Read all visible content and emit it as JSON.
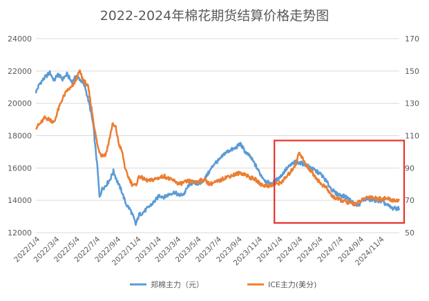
{
  "chart_data": {
    "type": "line",
    "title": "2022-2024年棉花期货结算价格走势图",
    "x_range": [
      "2022-01-04",
      "2024-12-31"
    ],
    "x_tick_labels": [
      "2022/1/4",
      "2022/3/4",
      "2022/5/4",
      "2022/7/4",
      "2022/9/4",
      "2022/11/4",
      "2023/1/4",
      "2023/3/4",
      "2023/5/4",
      "2023/7/4",
      "2023/9/4",
      "2023/11/4",
      "2024/1/4",
      "2024/3/4",
      "2024/5/4",
      "2024/7/4",
      "2024/9/4",
      "2024/11/4"
    ],
    "y_left": {
      "min": 12000,
      "max": 24000,
      "step": 2000,
      "ticks": [
        "12000",
        "14000",
        "16000",
        "18000",
        "20000",
        "22000",
        "24000"
      ]
    },
    "y_right": {
      "min": 50,
      "max": 170,
      "step": 20,
      "ticks": [
        "50",
        "70",
        "90",
        "110",
        "130",
        "150",
        "170"
      ]
    },
    "grid": true,
    "legend": "bottom",
    "series": [
      {
        "name": "郑棉主力（元）",
        "axis": "left",
        "color": "#5b9bd5",
        "points": [
          [
            "2022-01-04",
            20700
          ],
          [
            "2022-01-15",
            21200
          ],
          [
            "2022-01-31",
            21600
          ],
          [
            "2022-02-15",
            21900
          ],
          [
            "2022-02-28",
            21400
          ],
          [
            "2022-03-10",
            21800
          ],
          [
            "2022-03-25",
            21500
          ],
          [
            "2022-04-08",
            21800
          ],
          [
            "2022-04-22",
            21300
          ],
          [
            "2022-05-06",
            21700
          ],
          [
            "2022-05-20",
            21400
          ],
          [
            "2022-06-01",
            21000
          ],
          [
            "2022-06-15",
            19800
          ],
          [
            "2022-06-25",
            18700
          ],
          [
            "2022-07-01",
            17400
          ],
          [
            "2022-07-08",
            16000
          ],
          [
            "2022-07-14",
            14200
          ],
          [
            "2022-07-22",
            14700
          ],
          [
            "2022-08-01",
            14900
          ],
          [
            "2022-08-15",
            15300
          ],
          [
            "2022-08-25",
            15800
          ],
          [
            "2022-09-05",
            15200
          ],
          [
            "2022-09-20",
            14500
          ],
          [
            "2022-10-01",
            13800
          ],
          [
            "2022-10-15",
            13400
          ],
          [
            "2022-10-25",
            12900
          ],
          [
            "2022-10-31",
            12500
          ],
          [
            "2022-11-10",
            13100
          ],
          [
            "2022-11-25",
            13300
          ],
          [
            "2022-12-10",
            13600
          ],
          [
            "2022-12-25",
            13900
          ],
          [
            "2023-01-10",
            14300
          ],
          [
            "2023-01-25",
            14200
          ],
          [
            "2023-02-10",
            14400
          ],
          [
            "2023-02-25",
            14500
          ],
          [
            "2023-03-10",
            14300
          ],
          [
            "2023-03-25",
            14400
          ],
          [
            "2023-04-10",
            15000
          ],
          [
            "2023-04-25",
            15100
          ],
          [
            "2023-05-10",
            15000
          ],
          [
            "2023-05-25",
            15300
          ],
          [
            "2023-06-10",
            15800
          ],
          [
            "2023-06-25",
            16300
          ],
          [
            "2023-07-10",
            16500
          ],
          [
            "2023-07-25",
            16900
          ],
          [
            "2023-08-10",
            17100
          ],
          [
            "2023-08-25",
            17200
          ],
          [
            "2023-09-10",
            17500
          ],
          [
            "2023-09-25",
            17000
          ],
          [
            "2023-10-10",
            16700
          ],
          [
            "2023-10-25",
            16200
          ],
          [
            "2023-11-10",
            15600
          ],
          [
            "2023-11-25",
            15200
          ],
          [
            "2023-12-10",
            15000
          ],
          [
            "2023-12-25",
            15200
          ],
          [
            "2024-01-10",
            15500
          ],
          [
            "2024-01-25",
            15900
          ],
          [
            "2024-02-10",
            16200
          ],
          [
            "2024-02-25",
            16400
          ],
          [
            "2024-03-10",
            16300
          ],
          [
            "2024-03-25",
            16200
          ],
          [
            "2024-04-10",
            16000
          ],
          [
            "2024-04-25",
            15800
          ],
          [
            "2024-05-10",
            15600
          ],
          [
            "2024-05-25",
            15200
          ],
          [
            "2024-06-10",
            14700
          ],
          [
            "2024-06-25",
            14400
          ],
          [
            "2024-07-10",
            14300
          ],
          [
            "2024-07-25",
            14200
          ],
          [
            "2024-08-10",
            13900
          ],
          [
            "2024-08-20",
            13700
          ],
          [
            "2024-08-31",
            13700
          ],
          [
            "2024-09-10",
            14000
          ],
          [
            "2024-09-25",
            14100
          ],
          [
            "2024-10-10",
            14000
          ],
          [
            "2024-10-25",
            14000
          ],
          [
            "2024-11-10",
            13900
          ],
          [
            "2024-11-25",
            13700
          ],
          [
            "2024-12-10",
            13500
          ],
          [
            "2024-12-31",
            13500
          ]
        ]
      },
      {
        "name": "ICE主力(美分)",
        "axis": "right",
        "color": "#ed7d31",
        "points": [
          [
            "2022-01-04",
            115
          ],
          [
            "2022-01-15",
            117
          ],
          [
            "2022-01-31",
            121
          ],
          [
            "2022-02-15",
            120
          ],
          [
            "2022-02-28",
            118
          ],
          [
            "2022-03-10",
            125
          ],
          [
            "2022-03-25",
            133
          ],
          [
            "2022-04-08",
            138
          ],
          [
            "2022-04-22",
            140
          ],
          [
            "2022-05-06",
            145
          ],
          [
            "2022-05-15",
            150
          ],
          [
            "2022-05-25",
            145
          ],
          [
            "2022-06-10",
            140
          ],
          [
            "2022-06-20",
            127
          ],
          [
            "2022-07-01",
            112
          ],
          [
            "2022-07-10",
            102
          ],
          [
            "2022-07-20",
            98
          ],
          [
            "2022-08-01",
            98
          ],
          [
            "2022-08-10",
            105
          ],
          [
            "2022-08-22",
            117
          ],
          [
            "2022-09-01",
            115
          ],
          [
            "2022-09-10",
            105
          ],
          [
            "2022-09-20",
            100
          ],
          [
            "2022-10-01",
            88
          ],
          [
            "2022-10-10",
            84
          ],
          [
            "2022-10-20",
            80
          ],
          [
            "2022-10-31",
            79
          ],
          [
            "2022-11-10",
            85
          ],
          [
            "2022-11-25",
            83
          ],
          [
            "2022-12-10",
            82
          ],
          [
            "2022-12-25",
            83
          ],
          [
            "2023-01-10",
            84
          ],
          [
            "2023-01-25",
            85
          ],
          [
            "2023-02-10",
            83
          ],
          [
            "2023-02-25",
            82
          ],
          [
            "2023-03-10",
            80
          ],
          [
            "2023-03-25",
            81
          ],
          [
            "2023-04-10",
            82
          ],
          [
            "2023-04-25",
            81
          ],
          [
            "2023-05-10",
            82
          ],
          [
            "2023-05-25",
            83
          ],
          [
            "2023-06-10",
            80
          ],
          [
            "2023-06-25",
            81
          ],
          [
            "2023-07-10",
            82
          ],
          [
            "2023-07-25",
            84
          ],
          [
            "2023-08-10",
            85
          ],
          [
            "2023-08-25",
            86
          ],
          [
            "2023-09-10",
            87
          ],
          [
            "2023-09-25",
            86
          ],
          [
            "2023-10-10",
            84
          ],
          [
            "2023-10-25",
            83
          ],
          [
            "2023-11-10",
            80
          ],
          [
            "2023-11-25",
            79
          ],
          [
            "2023-12-10",
            79
          ],
          [
            "2023-12-25",
            80
          ],
          [
            "2024-01-10",
            81
          ],
          [
            "2024-01-25",
            84
          ],
          [
            "2024-02-10",
            88
          ],
          [
            "2024-02-25",
            93
          ],
          [
            "2024-03-05",
            100
          ],
          [
            "2024-03-15",
            96
          ],
          [
            "2024-03-25",
            92
          ],
          [
            "2024-04-10",
            88
          ],
          [
            "2024-04-25",
            84
          ],
          [
            "2024-05-10",
            80
          ],
          [
            "2024-05-25",
            78
          ],
          [
            "2024-06-10",
            73
          ],
          [
            "2024-06-25",
            71
          ],
          [
            "2024-07-10",
            70
          ],
          [
            "2024-07-25",
            69
          ],
          [
            "2024-08-10",
            68
          ],
          [
            "2024-08-25",
            68
          ],
          [
            "2024-09-10",
            70
          ],
          [
            "2024-09-25",
            72
          ],
          [
            "2024-10-10",
            72
          ],
          [
            "2024-10-25",
            71
          ],
          [
            "2024-11-10",
            71
          ],
          [
            "2024-11-25",
            71
          ],
          [
            "2024-12-10",
            70
          ],
          [
            "2024-12-31",
            70
          ]
        ]
      }
    ],
    "highlight": {
      "from": "2024-01-01",
      "to": "2024-12-31",
      "y_left_from": 13200,
      "y_left_to": 17700,
      "color": "#e8302a"
    }
  }
}
